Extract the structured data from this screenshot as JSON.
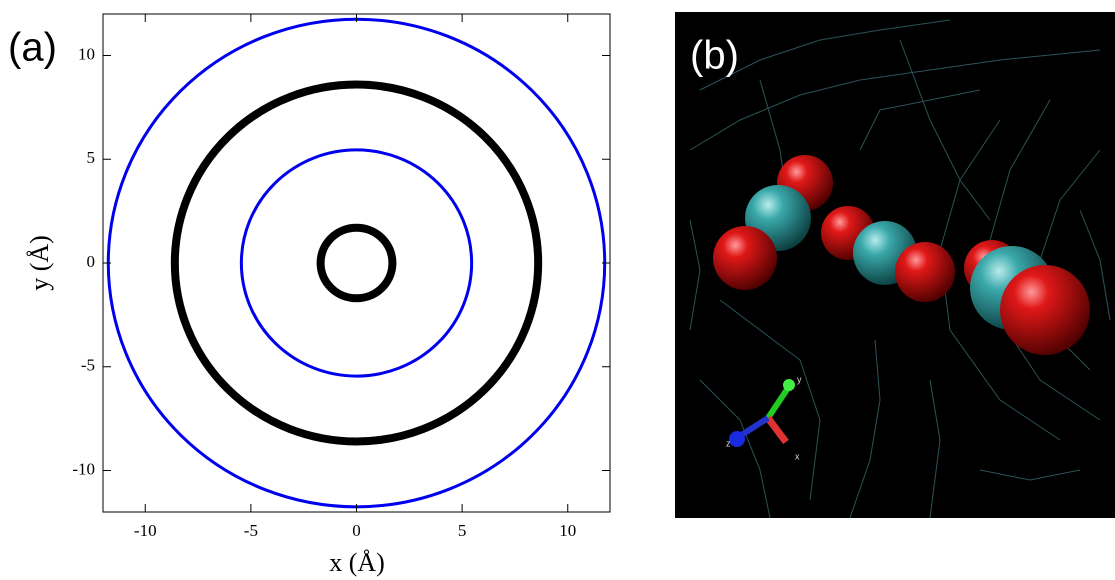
{
  "chart_data": {
    "type": "circles",
    "panel_label": "(a)",
    "x_label": "x (Å)",
    "y_label": "y (Å)",
    "xlim": [
      -12,
      12
    ],
    "ylim": [
      -12,
      12
    ],
    "xticks": [
      -10,
      -5,
      0,
      5,
      10
    ],
    "yticks": [
      -10,
      -5,
      0,
      5,
      10
    ],
    "circles": [
      {
        "cx": 0,
        "cy": 0,
        "r": 5.45,
        "color": "#0000ee"
      },
      {
        "cx": 0,
        "cy": 0,
        "r": 11.75,
        "color": "#0000ee"
      }
    ],
    "trajectory": [
      {
        "cx": 0,
        "cy": 0,
        "r": 8.6,
        "color": "#000000"
      },
      {
        "cx": 0,
        "cy": 0,
        "r": 1.7,
        "color": "#000000"
      }
    ]
  },
  "render": {
    "panel_label": "(b)",
    "axis_labels": [
      "x",
      "y",
      "z"
    ]
  }
}
